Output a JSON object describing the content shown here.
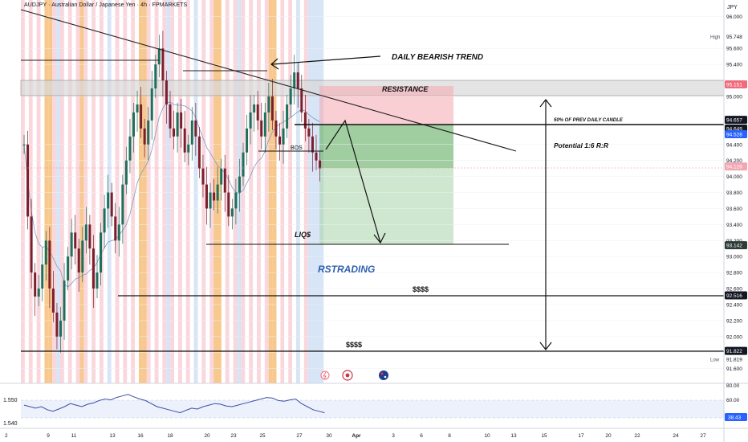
{
  "header": {
    "symbol_title": "AUDJPY · Australian Dollar / Japanese Yen · 4h · FPMARKETS",
    "currency": "JPY"
  },
  "chart_data": {
    "type": "candlestick",
    "instrument": "AUDJPY",
    "timeframe": "4h",
    "price_axis": {
      "unit": "JPY",
      "range": [
        91.6,
        96.0
      ],
      "ticks": [
        "96.000",
        "95.600",
        "95.400",
        "95.000",
        "94.400",
        "94.200",
        "94.000",
        "93.800",
        "93.600",
        "93.400",
        "93.200",
        "93.000",
        "92.800",
        "92.600",
        "92.400",
        "92.200",
        "92.000",
        "91.800",
        "91.600"
      ],
      "partial_ticks": [
        "95.800",
        "95.200",
        "94.800",
        "94.600"
      ]
    },
    "price_labels": [
      {
        "label": "High",
        "value": "95.748",
        "kind": "plain"
      },
      {
        "label": "",
        "value": "95.151",
        "kind": "red"
      },
      {
        "label": "",
        "value": "94.657",
        "kind": "black"
      },
      {
        "label": "",
        "value": "94.649",
        "kind": "black"
      },
      {
        "label": "",
        "value": "94.528",
        "kind": "blue"
      },
      {
        "label": "",
        "value": "94.126",
        "kind": "pink"
      },
      {
        "label": "",
        "value": "93.142",
        "kind": "dark"
      },
      {
        "label": "",
        "value": "92.516",
        "kind": "black"
      },
      {
        "label": "",
        "value": "91.822",
        "kind": "black"
      },
      {
        "label": "Low",
        "value": "91.819",
        "kind": "plain"
      }
    ],
    "x_axis": {
      "ticks": [
        "9",
        "11",
        "13",
        "16",
        "18",
        "20",
        "23",
        "25",
        "27",
        "30",
        "Apr",
        "3",
        "6",
        "8",
        "10",
        "13",
        "15",
        "17",
        "20",
        "22",
        "24",
        "27"
      ],
      "start_marker": "2"
    },
    "annotations": {
      "trend_label": "DAILY BEARISH TREND",
      "resistance_label": "RESISTANCE",
      "half_candle_label": "50% OF PREV DAILY CANDLE",
      "rr_label": "Potential  1:6 R:R",
      "bos_label": "BOS",
      "liq_label": "LIQ$",
      "brand_label": "RSTRADING",
      "liquidity_label_1": "$$$$",
      "liquidity_label_2": "$$$$"
    },
    "levels": {
      "resistance_top": 95.2,
      "resistance_bottom": 95.01,
      "half_daily_candle": 94.65,
      "sell_entry": 94.65,
      "stop_loss": 95.11,
      "take_profit": 93.142,
      "take_profit_upper_zone": 94.126,
      "liq_low": 93.142,
      "liquidity_1": 92.516,
      "liquidity_2": 91.822
    },
    "candles_summary": {
      "range_high": 95.748,
      "range_low": 91.819,
      "last_price": 94.126
    },
    "indicator": {
      "type": "oscillator",
      "scale": {
        "ticks": [
          "80.00",
          "60.00",
          "40.00"
        ]
      },
      "last_value": "38.43",
      "left_label": "1.550",
      "left_label_low": "1.540"
    }
  },
  "colors": {
    "pink_band": "#f8c9d1",
    "orange_band": "#f6b76a",
    "blue_band": "#c9dcf4",
    "bull": "#1e6f5c",
    "bear": "#7b1f2e",
    "resistance_zone": "#d9d9d9",
    "stop_zone": "#f9c4c8",
    "profit_zone": "#a9d3a8",
    "profit_zone_light": "#cfe7cd",
    "brand": "#2f5fb0",
    "ma": "#7b9bc6"
  }
}
